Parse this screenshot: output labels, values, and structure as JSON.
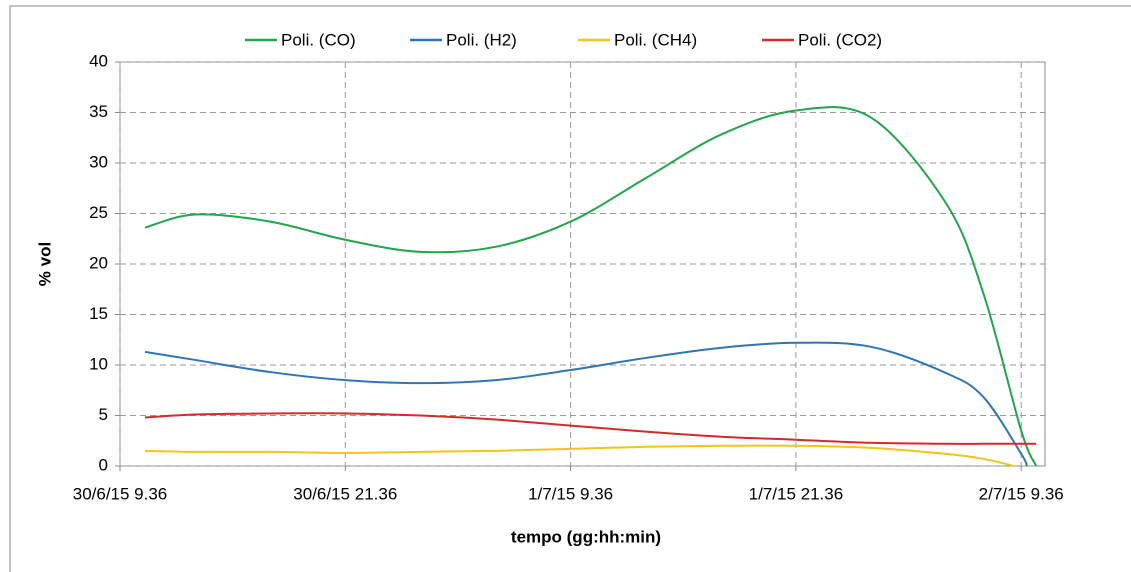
{
  "chart_data": {
    "type": "line",
    "y_label": "% vol",
    "x_label": "tempo (gg:hh:min)",
    "xlim": [
      "2015-06-30T09:36",
      "2015-07-02T10:52"
    ],
    "xticks": [
      {
        "value": "2015-06-30T09:36",
        "label": "30/6/15 9.36"
      },
      {
        "value": "2015-06-30T21:36",
        "label": "30/6/15 21.36"
      },
      {
        "value": "2015-07-01T09:36",
        "label": "1/7/15 9.36"
      },
      {
        "value": "2015-07-01T21:36",
        "label": "1/7/15 21.36"
      },
      {
        "value": "2015-07-02T09:36",
        "label": "2/7/15 9.36"
      }
    ],
    "ylim": [
      0,
      40
    ],
    "yticks": [
      0,
      5,
      10,
      15,
      20,
      25,
      30,
      35,
      40
    ],
    "grid": true,
    "legend": "top",
    "series": [
      {
        "name": "Poli. (CO)",
        "color": "#1fa64b",
        "x": [
          "2015-06-30T10:56",
          "2015-06-30T13:36",
          "2015-06-30T17:36",
          "2015-06-30T21:36",
          "2015-07-01T01:36",
          "2015-07-01T05:36",
          "2015-07-01T09:36",
          "2015-07-01T13:36",
          "2015-07-01T17:36",
          "2015-07-01T21:36",
          "2015-07-02T01:36",
          "2015-07-02T05:36",
          "2015-07-02T07:36",
          "2015-07-02T09:36",
          "2015-07-02T10:24"
        ],
        "values": [
          23.6,
          24.9,
          24.2,
          22.4,
          21.2,
          21.7,
          24.2,
          28.5,
          32.8,
          35.2,
          34.5,
          26,
          17,
          3.5,
          0
        ]
      },
      {
        "name": "Poli. (H2)",
        "color": "#2e75b6",
        "x": [
          "2015-06-30T10:56",
          "2015-06-30T13:36",
          "2015-06-30T17:36",
          "2015-06-30T21:36",
          "2015-07-01T01:36",
          "2015-07-01T05:36",
          "2015-07-01T09:36",
          "2015-07-01T13:36",
          "2015-07-01T17:36",
          "2015-07-01T21:36",
          "2015-07-02T01:36",
          "2015-07-02T05:36",
          "2015-07-02T07:36",
          "2015-07-02T09:36",
          "2015-07-02T09:54"
        ],
        "values": [
          11.3,
          10.5,
          9.3,
          8.5,
          8.2,
          8.5,
          9.5,
          10.7,
          11.7,
          12.2,
          11.8,
          9.2,
          6.8,
          1.2,
          0
        ]
      },
      {
        "name": "Poli. (CH4)",
        "color": "#f2c318",
        "x": [
          "2015-06-30T10:56",
          "2015-06-30T13:36",
          "2015-06-30T17:36",
          "2015-06-30T21:36",
          "2015-07-01T01:36",
          "2015-07-01T05:36",
          "2015-07-01T09:36",
          "2015-07-01T13:36",
          "2015-07-01T17:36",
          "2015-07-01T21:36",
          "2015-07-02T01:36",
          "2015-07-02T05:36",
          "2015-07-02T07:36",
          "2015-07-02T09:12"
        ],
        "values": [
          1.5,
          1.4,
          1.4,
          1.3,
          1.4,
          1.5,
          1.7,
          1.9,
          2.0,
          2.0,
          1.8,
          1.2,
          0.7,
          0
        ]
      },
      {
        "name": "Poli. (CO2)",
        "color": "#d42a2a",
        "x": [
          "2015-06-30T10:56",
          "2015-06-30T13:36",
          "2015-06-30T17:36",
          "2015-06-30T21:36",
          "2015-07-01T01:36",
          "2015-07-01T05:36",
          "2015-07-01T09:36",
          "2015-07-01T13:36",
          "2015-07-01T17:36",
          "2015-07-01T21:36",
          "2015-07-02T01:36",
          "2015-07-02T05:36",
          "2015-07-02T07:36",
          "2015-07-02T09:36",
          "2015-07-02T10:24"
        ],
        "values": [
          4.8,
          5.1,
          5.2,
          5.2,
          5.0,
          4.6,
          4.0,
          3.4,
          2.9,
          2.6,
          2.3,
          2.2,
          2.2,
          2.2,
          2.2
        ]
      }
    ]
  }
}
